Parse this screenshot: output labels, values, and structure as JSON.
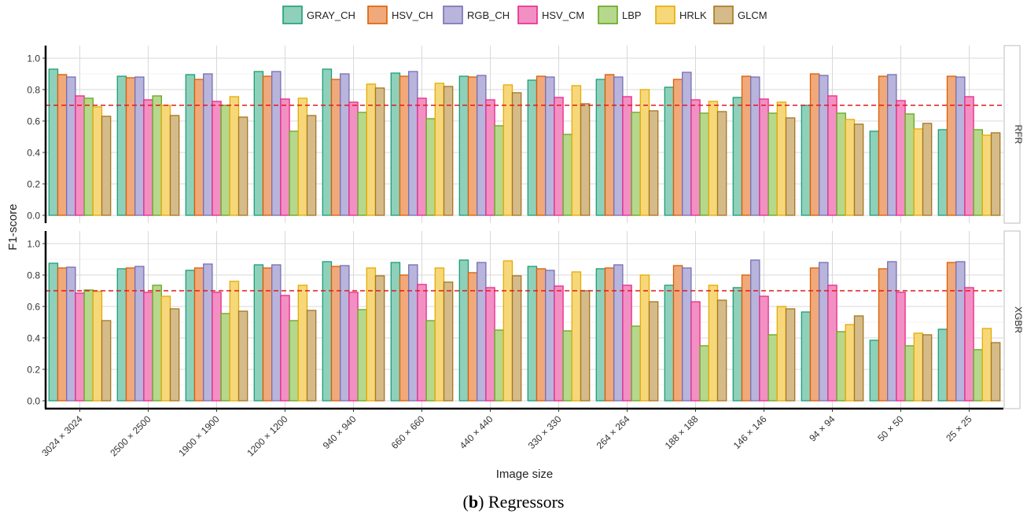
{
  "chart_data": {
    "type": "bar",
    "title": "",
    "caption": {
      "label": "b",
      "text": "Regressors"
    },
    "xlabel": "Image size",
    "ylabel": "F1-score",
    "ylim": [
      0,
      1.05
    ],
    "yticks": [
      "0.0",
      "0.2",
      "0.4",
      "0.6",
      "0.8",
      "1.0"
    ],
    "grid": true,
    "reference_line": {
      "y": 0.7,
      "color": "#e31a1c",
      "style": "dashed"
    },
    "categories": [
      "3024 × 3024",
      "2500 × 2500",
      "1900 × 1900",
      "1200 × 1200",
      "940 × 940",
      "660 × 660",
      "440 × 440",
      "330 × 330",
      "264 × 264",
      "188 × 188",
      "146 × 146",
      "94 × 94",
      "50 × 50",
      "25 × 25"
    ],
    "legend": {
      "placement": "top",
      "items": [
        {
          "name": "GRAY_CH",
          "fill": "#8fd0bb",
          "stroke": "#1b9e77"
        },
        {
          "name": "HSV_CH",
          "fill": "#f0a97a",
          "stroke": "#d95f02"
        },
        {
          "name": "RGB_CH",
          "fill": "#b9b4dc",
          "stroke": "#7570b3"
        },
        {
          "name": "HSV_CM",
          "fill": "#f390c3",
          "stroke": "#e7298a"
        },
        {
          "name": "LBP",
          "fill": "#b6d88c",
          "stroke": "#66a61e"
        },
        {
          "name": "HRLK",
          "fill": "#f6d87a",
          "stroke": "#e6ab02"
        },
        {
          "name": "GLCM",
          "fill": "#d5bb8a",
          "stroke": "#a6761d"
        }
      ]
    },
    "panels": [
      {
        "name": "RFR",
        "series": [
          {
            "name": "GRAY_CH",
            "values": [
              0.93,
              0.885,
              0.895,
              0.915,
              0.93,
              0.905,
              0.885,
              0.86,
              0.865,
              0.815,
              0.75,
              0.7,
              0.535,
              0.545
            ]
          },
          {
            "name": "HSV_CH",
            "values": [
              0.895,
              0.875,
              0.865,
              0.885,
              0.865,
              0.885,
              0.88,
              0.885,
              0.895,
              0.865,
              0.885,
              0.9,
              0.885,
              0.885
            ]
          },
          {
            "name": "RGB_CH",
            "values": [
              0.88,
              0.88,
              0.9,
              0.915,
              0.9,
              0.915,
              0.89,
              0.88,
              0.88,
              0.91,
              0.88,
              0.89,
              0.895,
              0.88
            ]
          },
          {
            "name": "HSV_CM",
            "values": [
              0.76,
              0.735,
              0.725,
              0.74,
              0.72,
              0.745,
              0.735,
              0.75,
              0.755,
              0.735,
              0.74,
              0.76,
              0.73,
              0.755
            ]
          },
          {
            "name": "LBP",
            "values": [
              0.745,
              0.76,
              0.7,
              0.535,
              0.655,
              0.615,
              0.57,
              0.515,
              0.655,
              0.65,
              0.65,
              0.65,
              0.645,
              0.545
            ]
          },
          {
            "name": "HRLK",
            "values": [
              0.69,
              0.7,
              0.755,
              0.745,
              0.835,
              0.84,
              0.83,
              0.825,
              0.8,
              0.725,
              0.72,
              0.61,
              0.55,
              0.51
            ]
          },
          {
            "name": "GLCM",
            "values": [
              0.63,
              0.635,
              0.625,
              0.635,
              0.81,
              0.82,
              0.78,
              0.71,
              0.665,
              0.66,
              0.62,
              0.58,
              0.585,
              0.525
            ]
          }
        ]
      },
      {
        "name": "XGBR",
        "series": [
          {
            "name": "GRAY_CH",
            "values": [
              0.875,
              0.84,
              0.83,
              0.865,
              0.885,
              0.88,
              0.895,
              0.855,
              0.84,
              0.735,
              0.72,
              0.565,
              0.385,
              0.455
            ]
          },
          {
            "name": "HSV_CH",
            "values": [
              0.845,
              0.845,
              0.845,
              0.845,
              0.855,
              0.8,
              0.815,
              0.84,
              0.845,
              0.86,
              0.8,
              0.845,
              0.84,
              0.88
            ]
          },
          {
            "name": "RGB_CH",
            "values": [
              0.85,
              0.855,
              0.87,
              0.865,
              0.86,
              0.865,
              0.88,
              0.83,
              0.865,
              0.845,
              0.895,
              0.88,
              0.885,
              0.885
            ]
          },
          {
            "name": "HSV_CM",
            "values": [
              0.685,
              0.69,
              0.69,
              0.67,
              0.69,
              0.74,
              0.72,
              0.73,
              0.735,
              0.63,
              0.665,
              0.735,
              0.69,
              0.72
            ]
          },
          {
            "name": "LBP",
            "values": [
              0.705,
              0.735,
              0.555,
              0.51,
              0.58,
              0.51,
              0.45,
              0.445,
              0.475,
              0.35,
              0.42,
              0.44,
              0.35,
              0.325
            ]
          },
          {
            "name": "HRLK",
            "values": [
              0.695,
              0.665,
              0.76,
              0.735,
              0.845,
              0.845,
              0.89,
              0.82,
              0.8,
              0.735,
              0.6,
              0.485,
              0.43,
              0.46
            ]
          },
          {
            "name": "GLCM",
            "values": [
              0.51,
              0.585,
              0.57,
              0.575,
              0.795,
              0.755,
              0.795,
              0.7,
              0.63,
              0.64,
              0.585,
              0.54,
              0.42,
              0.37
            ]
          }
        ]
      }
    ]
  }
}
